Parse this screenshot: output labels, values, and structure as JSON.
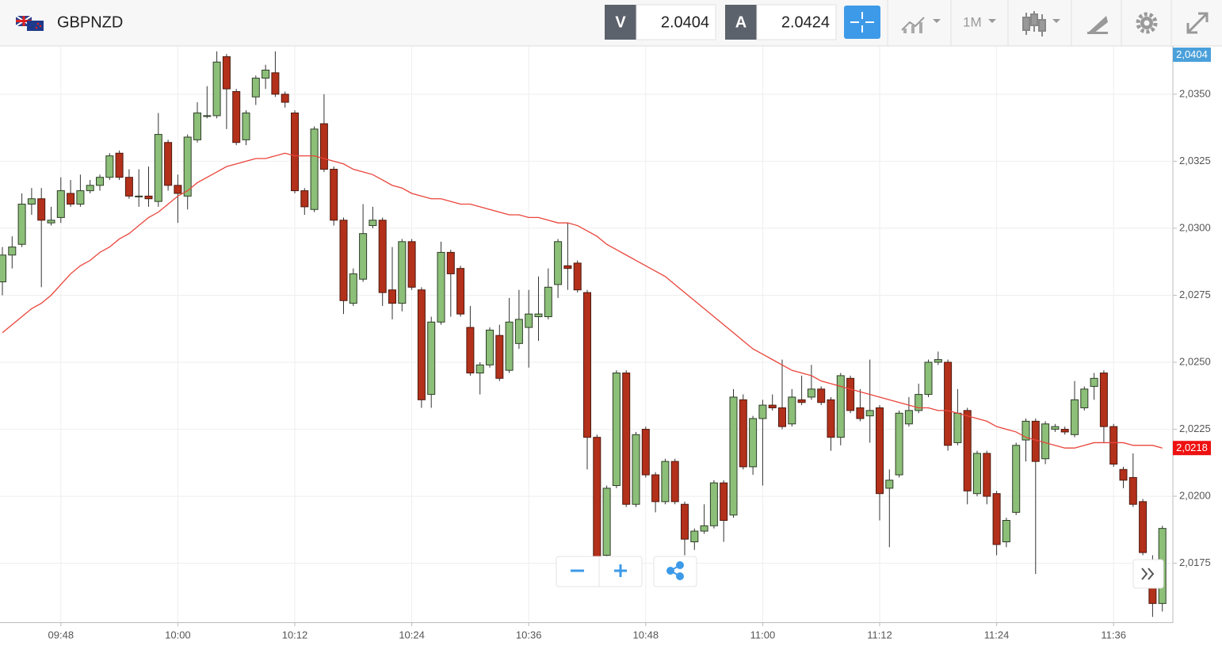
{
  "header": {
    "symbol": "GBPNZD",
    "bid": {
      "letter": "V",
      "value": "2.0404"
    },
    "ask": {
      "letter": "A",
      "value": "2.0424"
    },
    "timeframe": "1M"
  },
  "chart_data": {
    "type": "candlestick",
    "categories": [
      null,
      null,
      null,
      null,
      null,
      null,
      "09:48",
      null,
      null,
      null,
      null,
      null,
      null,
      null,
      null,
      null,
      null,
      null,
      "10:00",
      null,
      null,
      null,
      null,
      null,
      null,
      null,
      null,
      null,
      null,
      null,
      "10:12",
      null,
      null,
      null,
      null,
      null,
      null,
      null,
      null,
      null,
      null,
      null,
      "10:24",
      null,
      null,
      null,
      null,
      null,
      null,
      null,
      null,
      null,
      null,
      null,
      "10:36",
      null,
      null,
      null,
      null,
      null,
      null,
      null,
      null,
      null,
      null,
      null,
      "10:48",
      null,
      null,
      null,
      null,
      null,
      null,
      null,
      null,
      null,
      null,
      null,
      "11:00",
      null,
      null,
      null,
      null,
      null,
      null,
      null,
      null,
      null,
      null,
      null,
      "11:12",
      null,
      null,
      null,
      null,
      null,
      null,
      null,
      null,
      null,
      null,
      null,
      "11:24",
      null,
      null,
      null,
      null,
      null,
      null,
      null,
      null,
      null,
      null,
      null,
      "11:36",
      null,
      null,
      null,
      null,
      null
    ],
    "open": [
      2.028,
      2.029,
      2.0294,
      2.0309,
      2.0311,
      2.0302,
      2.0304,
      2.0313,
      2.0309,
      2.0314,
      2.0316,
      2.0319,
      2.0328,
      2.0319,
      2.0312,
      2.0312,
      2.031,
      2.0332,
      2.0316,
      2.0312,
      2.0333,
      2.0342,
      2.0342,
      2.0364,
      2.0351,
      2.0333,
      2.0349,
      2.0356,
      2.0358,
      2.035,
      2.0343,
      2.0314,
      2.0307,
      2.0339,
      2.0322,
      2.0303,
      2.0272,
      2.0281,
      2.0301,
      2.0303,
      2.0277,
      2.0272,
      2.0295,
      2.0277,
      2.0238,
      2.0265,
      2.0291,
      2.0285,
      2.0263,
      2.0246,
      2.0249,
      2.026,
      2.0247,
      2.0257,
      2.0263,
      2.0267,
      2.0267,
      2.0279,
      2.0286,
      2.0287,
      2.0276,
      2.0222,
      2.0178,
      2.0204,
      2.0246,
      2.0197,
      2.0225,
      2.0208,
      2.0198,
      2.0213,
      2.0197,
      2.0183,
      2.0187,
      2.0189,
      2.0205,
      2.0193,
      2.0236,
      2.0211,
      2.0229,
      2.0234,
      2.0233,
      2.0227,
      2.0236,
      2.0237,
      2.024,
      2.0236,
      2.0222,
      2.0244,
      2.0233,
      2.023,
      2.0233,
      2.0203,
      2.0208,
      2.0227,
      2.0232,
      2.0238,
      2.025,
      2.025,
      2.022,
      2.0232,
      2.0201,
      2.0216,
      2.0201,
      2.0183,
      2.0194,
      2.0221,
      2.0228,
      2.0214,
      2.0225,
      2.0225,
      2.0223,
      2.0233,
      2.0241,
      2.0246,
      2.0226,
      2.021,
      2.0207,
      2.0198,
      2.0176,
      2.016
    ],
    "high": [
      2.0293,
      2.0297,
      2.0313,
      2.0315,
      2.0315,
      2.0308,
      2.0319,
      2.0318,
      2.032,
      2.0318,
      2.032,
      2.0328,
      2.0329,
      2.0322,
      2.0322,
      2.0323,
      2.0343,
      2.0333,
      2.032,
      2.0335,
      2.0347,
      2.0353,
      2.0366,
      2.0365,
      2.0352,
      2.0344,
      2.0357,
      2.0361,
      2.0366,
      2.0351,
      2.0344,
      2.0315,
      2.0338,
      2.035,
      2.0323,
      2.0304,
      2.0285,
      2.0309,
      2.0308,
      2.0304,
      2.0293,
      2.0296,
      2.0296,
      2.0278,
      2.0267,
      2.0295,
      2.0292,
      2.0286,
      2.0271,
      2.025,
      2.0263,
      2.0264,
      2.0274,
      2.0277,
      2.0277,
      2.0282,
      2.0285,
      2.0296,
      2.0302,
      2.0288,
      2.0277,
      2.0223,
      2.0204,
      2.0247,
      2.0247,
      2.0224,
      2.0226,
      2.0209,
      2.0214,
      2.0214,
      2.0198,
      2.0188,
      2.0197,
      2.0206,
      2.0206,
      2.024,
      2.0238,
      2.023,
      2.0236,
      2.0238,
      2.0251,
      2.024,
      2.0245,
      2.0249,
      2.0241,
      2.0237,
      2.0246,
      2.0245,
      2.024,
      2.0251,
      2.0234,
      2.021,
      2.0232,
      2.0237,
      2.0242,
      2.0251,
      2.0254,
      2.0251,
      2.024,
      2.0233,
      2.0217,
      2.0217,
      2.0202,
      2.0192,
      2.022,
      2.0229,
      2.0229,
      2.0228,
      2.0227,
      2.0226,
      2.0243,
      2.0241,
      2.0246,
      2.0247,
      2.0227,
      2.0211,
      2.0216,
      2.0199,
      2.0178,
      2.0189
    ],
    "low": [
      2.0275,
      2.0285,
      2.0293,
      2.0305,
      2.0278,
      2.0301,
      2.0302,
      2.0308,
      2.0308,
      2.0313,
      2.0314,
      2.0318,
      2.0318,
      2.0311,
      2.0308,
      2.0308,
      2.0308,
      2.0314,
      2.0302,
      2.0307,
      2.0332,
      2.0341,
      2.0341,
      2.0337,
      2.0331,
      2.0331,
      2.0346,
      2.0352,
      2.0349,
      2.0345,
      2.0313,
      2.0305,
      2.0306,
      2.0321,
      2.0301,
      2.0268,
      2.0271,
      2.028,
      2.03,
      2.0271,
      2.0266,
      2.0269,
      2.0277,
      2.0233,
      2.0233,
      2.0264,
      2.0267,
      2.0267,
      2.0245,
      2.0238,
      2.0248,
      2.0243,
      2.0246,
      2.0255,
      2.0248,
      2.0258,
      2.0266,
      2.0274,
      2.0277,
      2.0276,
      2.021,
      2.0176,
      2.0177,
      2.0203,
      2.0196,
      2.0196,
      2.0207,
      2.0194,
      2.0197,
      2.0197,
      2.0178,
      2.018,
      2.0186,
      2.0188,
      2.0183,
      2.0192,
      2.021,
      2.0208,
      2.0204,
      2.0232,
      2.0225,
      2.0226,
      2.0234,
      2.0236,
      2.0234,
      2.0217,
      2.0219,
      2.0231,
      2.0228,
      2.022,
      2.0191,
      2.0181,
      2.0207,
      2.0226,
      2.0231,
      2.0237,
      2.0249,
      2.0217,
      2.0219,
      2.0197,
      2.02,
      2.0197,
      2.0178,
      2.0181,
      2.0193,
      2.0213,
      2.0171,
      2.0212,
      2.0224,
      2.0223,
      2.0222,
      2.0232,
      2.0236,
      2.022,
      2.0211,
      2.0203,
      2.0196,
      2.0178,
      2.0155,
      2.0157
    ],
    "close": [
      2.029,
      2.0293,
      2.0309,
      2.0311,
      2.0303,
      2.0303,
      2.0314,
      2.0309,
      2.0314,
      2.0316,
      2.0319,
      2.0327,
      2.0319,
      2.0312,
      2.0312,
      2.0311,
      2.0335,
      2.0316,
      2.0313,
      2.0334,
      2.0343,
      2.0342,
      2.0362,
      2.0352,
      2.0332,
      2.0343,
      2.0356,
      2.0359,
      2.035,
      2.0347,
      2.0314,
      2.0308,
      2.0337,
      2.0322,
      2.0303,
      2.0273,
      2.0283,
      2.0298,
      2.0303,
      2.0276,
      2.0272,
      2.0295,
      2.0278,
      2.0236,
      2.0265,
      2.0291,
      2.0283,
      2.0268,
      2.0246,
      2.0249,
      2.0262,
      2.0244,
      2.0265,
      2.0266,
      2.0268,
      2.0268,
      2.0278,
      2.0295,
      2.0285,
      2.0277,
      2.0222,
      2.0177,
      2.0203,
      2.0246,
      2.0197,
      2.0223,
      2.0208,
      2.0198,
      2.0213,
      2.0198,
      2.0184,
      2.0187,
      2.0189,
      2.0205,
      2.0191,
      2.0237,
      2.0211,
      2.0229,
      2.0234,
      2.0233,
      2.0226,
      2.0237,
      2.0235,
      2.024,
      2.0235,
      2.0222,
      2.0245,
      2.0232,
      2.0229,
      2.0232,
      2.0201,
      2.0206,
      2.0231,
      2.0232,
      2.0238,
      2.025,
      2.0251,
      2.0219,
      2.0231,
      2.0202,
      2.0216,
      2.02,
      2.0182,
      2.0191,
      2.0219,
      2.0228,
      2.0213,
      2.0227,
      2.0226,
      2.0224,
      2.0236,
      2.024,
      2.0244,
      2.0226,
      2.0212,
      2.0206,
      2.0197,
      2.0179,
      2.016,
      2.0188
    ],
    "ma": [
      2.0261,
      2.0264,
      2.0267,
      2.027,
      2.0272,
      2.0275,
      2.0279,
      2.0283,
      2.0286,
      2.0288,
      2.0291,
      2.0293,
      2.0296,
      2.0298,
      2.0301,
      2.0304,
      2.0306,
      2.0309,
      2.0312,
      2.0314,
      2.0317,
      2.0319,
      2.0321,
      2.0323,
      2.0324,
      2.0325,
      2.0326,
      2.0326,
      2.0327,
      2.0328,
      2.0327,
      2.0327,
      2.0327,
      2.0326,
      2.0325,
      2.0324,
      2.0322,
      2.0321,
      2.032,
      2.0318,
      2.0316,
      2.0315,
      2.0313,
      2.0312,
      2.0311,
      2.0311,
      2.031,
      2.0309,
      2.0309,
      2.0308,
      2.0307,
      2.0306,
      2.0305,
      2.0305,
      2.0304,
      2.0304,
      2.0303,
      2.0302,
      2.0302,
      2.0301,
      2.0299,
      2.0297,
      2.0294,
      2.0292,
      2.029,
      2.0288,
      2.0286,
      2.0284,
      2.0282,
      2.0279,
      2.0276,
      2.0273,
      2.027,
      2.0267,
      2.0264,
      2.0261,
      2.0258,
      2.0255,
      2.0253,
      2.0251,
      2.0249,
      2.0247,
      2.0246,
      2.0245,
      2.0243,
      2.0242,
      2.0241,
      2.024,
      2.0239,
      2.0238,
      2.0237,
      2.0236,
      2.0235,
      2.0234,
      2.0233,
      2.0233,
      2.0232,
      2.0232,
      2.0231,
      2.023,
      2.0229,
      2.0228,
      2.0226,
      2.0225,
      2.0224,
      2.0222,
      2.0221,
      2.022,
      2.0219,
      2.0218,
      2.0218,
      2.0219,
      2.022,
      2.022,
      2.022,
      2.022,
      2.0219,
      2.0219,
      2.0219,
      2.0218
    ],
    "up_color": "#8cbf78",
    "down_color": "#b3301a",
    "ma_color": "#e9443a",
    "ylim": [
      2.0153,
      2.0368
    ],
    "yticks": [
      {
        "value": 2.0175,
        "label": "2,0175"
      },
      {
        "value": 2.02,
        "label": "2,0200"
      },
      {
        "value": 2.0225,
        "label": "2,0225"
      },
      {
        "value": 2.025,
        "label": "2,0250"
      },
      {
        "value": 2.0275,
        "label": "2,0275"
      },
      {
        "value": 2.03,
        "label": "2,0300"
      },
      {
        "value": 2.0325,
        "label": "2,0325"
      },
      {
        "value": 2.035,
        "label": "2,0350"
      }
    ],
    "last_price": {
      "value": 2.0218,
      "label": "2,0218"
    },
    "bid_marker": "2,0404",
    "grid": true
  }
}
